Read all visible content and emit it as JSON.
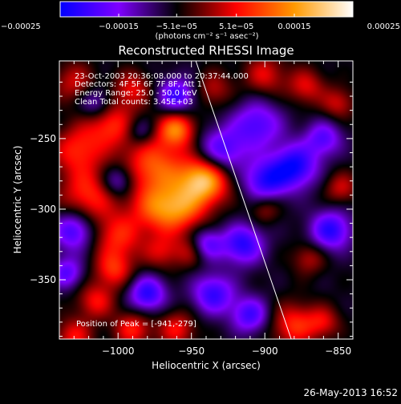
{
  "chart_data": {
    "type": "heatmap",
    "title": "Reconstructed RHESSI Image",
    "xlabel": "Heliocentric X (arcsec)",
    "ylabel": "Heliocentric Y (arcsec)",
    "xlim": [
      -1040,
      -840
    ],
    "ylim": [
      -392,
      -195
    ],
    "x_ticks": [
      {
        "value": -1000,
        "label": "−1000"
      },
      {
        "value": -950,
        "label": "−950"
      },
      {
        "value": -900,
        "label": "−900"
      },
      {
        "value": -850,
        "label": "−850"
      }
    ],
    "y_ticks": [
      {
        "value": -250,
        "label": "−250"
      },
      {
        "value": -300,
        "label": "−300"
      },
      {
        "value": -350,
        "label": "−350"
      }
    ],
    "colorbar": {
      "range": [
        -0.00025,
        0.00025
      ],
      "ticks": [
        {
          "value": -0.00025,
          "label": "−0.00025"
        },
        {
          "value": -0.00015,
          "label": "−0.00015"
        },
        {
          "value": -5.1e-05,
          "label": "−5.1e−05"
        },
        {
          "value": 5.1e-05,
          "label": "5.1e−05"
        },
        {
          "value": 0.00015,
          "label": "0.00015"
        },
        {
          "value": 0.00025,
          "label": "0.00025"
        }
      ],
      "unit_label": "(photons cm⁻² s⁻¹ asec⁻²)",
      "colors": [
        "#0000ff",
        "#7f00ff",
        "#000000",
        "#ff0000",
        "#ff9a00",
        "#ffffff"
      ]
    },
    "annotations": {
      "time_range": "23-Oct-2003 20:36:08.000 to 20:37:44.000",
      "detectors": "Detectors: 4F 5F 6F 7F 8F, Att 1",
      "energy_range": "Energy Range: 25.0 - 50.0 keV",
      "clean": "Clean     Total counts: 3.45E+03",
      "peak_position": "Position of Peak = [-941,-279]"
    },
    "peak": {
      "x": -941,
      "y": -279
    },
    "limb_line": [
      {
        "x": -947,
        "y": -195
      },
      {
        "x": -882,
        "y": -392
      }
    ],
    "blobs": [
      {
        "x": -941,
        "y": -279,
        "v": 0.00025,
        "r": 12
      },
      {
        "x": -975,
        "y": -270,
        "v": 0.00016,
        "r": 15
      },
      {
        "x": -960,
        "y": -243,
        "v": 0.00018,
        "r": 9
      },
      {
        "x": -957,
        "y": -300,
        "v": 0.00015,
        "r": 12
      },
      {
        "x": -975,
        "y": -300,
        "v": 0.00012,
        "r": 12
      },
      {
        "x": -1005,
        "y": -240,
        "v": 0.00013,
        "r": 12
      },
      {
        "x": -1028,
        "y": -258,
        "v": 0.00012,
        "r": 12
      },
      {
        "x": -1020,
        "y": -290,
        "v": 0.00013,
        "r": 14
      },
      {
        "x": -1000,
        "y": -320,
        "v": 0.00012,
        "r": 12
      },
      {
        "x": -1003,
        "y": -343,
        "v": 0.00012,
        "r": 9
      },
      {
        "x": -1015,
        "y": -365,
        "v": 0.00011,
        "r": 9
      },
      {
        "x": -970,
        "y": -330,
        "v": 9e-05,
        "r": 9
      },
      {
        "x": -950,
        "y": -330,
        "v": 8e-05,
        "r": 8
      },
      {
        "x": -990,
        "y": -385,
        "v": 0.00012,
        "r": 9
      },
      {
        "x": -960,
        "y": -385,
        "v": 0.00011,
        "r": 9
      },
      {
        "x": -1030,
        "y": -210,
        "v": 9e-05,
        "r": 10
      },
      {
        "x": -990,
        "y": -215,
        "v": 0.0001,
        "r": 9
      },
      {
        "x": -935,
        "y": -215,
        "v": 8e-05,
        "r": 9
      },
      {
        "x": -900,
        "y": -205,
        "v": 0.0001,
        "r": 10
      },
      {
        "x": -872,
        "y": -213,
        "v": 0.0001,
        "r": 9
      },
      {
        "x": -850,
        "y": -225,
        "v": 9e-05,
        "r": 8
      },
      {
        "x": -848,
        "y": -285,
        "v": 9e-05,
        "r": 8
      },
      {
        "x": -900,
        "y": -300,
        "v": 7e-05,
        "r": 7
      },
      {
        "x": -870,
        "y": -335,
        "v": 8e-05,
        "r": 8
      },
      {
        "x": -880,
        "y": -382,
        "v": 0.00013,
        "r": 11
      },
      {
        "x": -860,
        "y": -380,
        "v": 9e-05,
        "r": 8
      },
      {
        "x": -1030,
        "y": -390,
        "v": 0.00011,
        "r": 9
      },
      {
        "x": -960,
        "y": -220,
        "v": -0.00015,
        "r": 9
      },
      {
        "x": -930,
        "y": -260,
        "v": -0.00015,
        "r": 12
      },
      {
        "x": -905,
        "y": -240,
        "v": -0.00013,
        "r": 12
      },
      {
        "x": -880,
        "y": -270,
        "v": -0.00018,
        "r": 11
      },
      {
        "x": -900,
        "y": -280,
        "v": -0.00015,
        "r": 10
      },
      {
        "x": -860,
        "y": -250,
        "v": -0.00012,
        "r": 9
      },
      {
        "x": -915,
        "y": -325,
        "v": -0.00016,
        "r": 10
      },
      {
        "x": -855,
        "y": -315,
        "v": -0.00016,
        "r": 10
      },
      {
        "x": -980,
        "y": -360,
        "v": -0.00016,
        "r": 9
      },
      {
        "x": -935,
        "y": -360,
        "v": -0.00015,
        "r": 10
      },
      {
        "x": -1030,
        "y": -315,
        "v": -0.00015,
        "r": 10
      },
      {
        "x": -1000,
        "y": -280,
        "v": -0.00012,
        "r": 8
      },
      {
        "x": -940,
        "y": -325,
        "v": -0.00013,
        "r": 8
      },
      {
        "x": -910,
        "y": -375,
        "v": -0.00014,
        "r": 9
      },
      {
        "x": -1035,
        "y": -345,
        "v": -0.00012,
        "r": 8
      },
      {
        "x": -1015,
        "y": -225,
        "v": -0.0001,
        "r": 8
      },
      {
        "x": -985,
        "y": -245,
        "v": -8e-05,
        "r": 7
      }
    ]
  },
  "footer": {
    "date": "26-May-2013 16:52"
  }
}
